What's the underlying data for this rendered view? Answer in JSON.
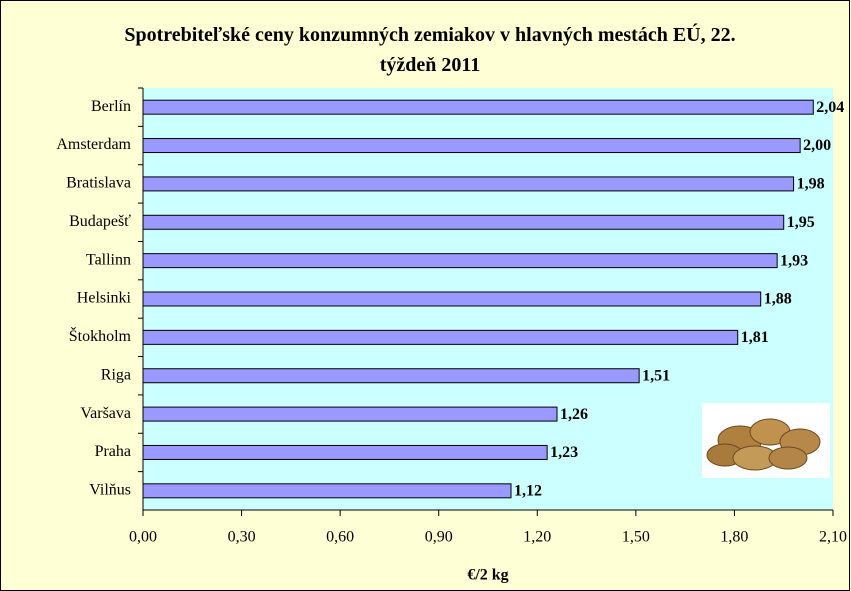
{
  "chart_data": {
    "type": "bar",
    "orientation": "horizontal",
    "title": "Spotrebiteľské ceny konzumných zemiakov v hlavných mestách EÚ, 22. týždeň 2011",
    "x_label": "€/2 kg",
    "categories": [
      "Berlín",
      "Amsterdam",
      "Bratislava",
      "Budapešť",
      "Tallinn",
      "Helsinki",
      "Štokholm",
      "Riga",
      "Varšava",
      "Praha",
      "Vilňus"
    ],
    "values": [
      2.04,
      2.0,
      1.98,
      1.95,
      1.93,
      1.88,
      1.81,
      1.51,
      1.26,
      1.23,
      1.12
    ],
    "value_labels": [
      "2,04",
      "2,00",
      "1,98",
      "1,95",
      "1,93",
      "1,88",
      "1,81",
      "1,51",
      "1,26",
      "1,23",
      "1,12"
    ],
    "color": "#9999ff",
    "xlim": [
      0,
      2.1
    ],
    "xticks": [
      {
        "value": 0,
        "label": "0,00"
      },
      {
        "value": 0.3,
        "label": "0,30"
      },
      {
        "value": 0.6,
        "label": "0,60"
      },
      {
        "value": 0.9,
        "label": "0,90"
      },
      {
        "value": 1.2,
        "label": "1,20"
      },
      {
        "value": 1.5,
        "label": "1,50"
      },
      {
        "value": 1.8,
        "label": "1,80"
      },
      {
        "value": 2.1,
        "label": "2,10"
      }
    ],
    "grid": false
  }
}
